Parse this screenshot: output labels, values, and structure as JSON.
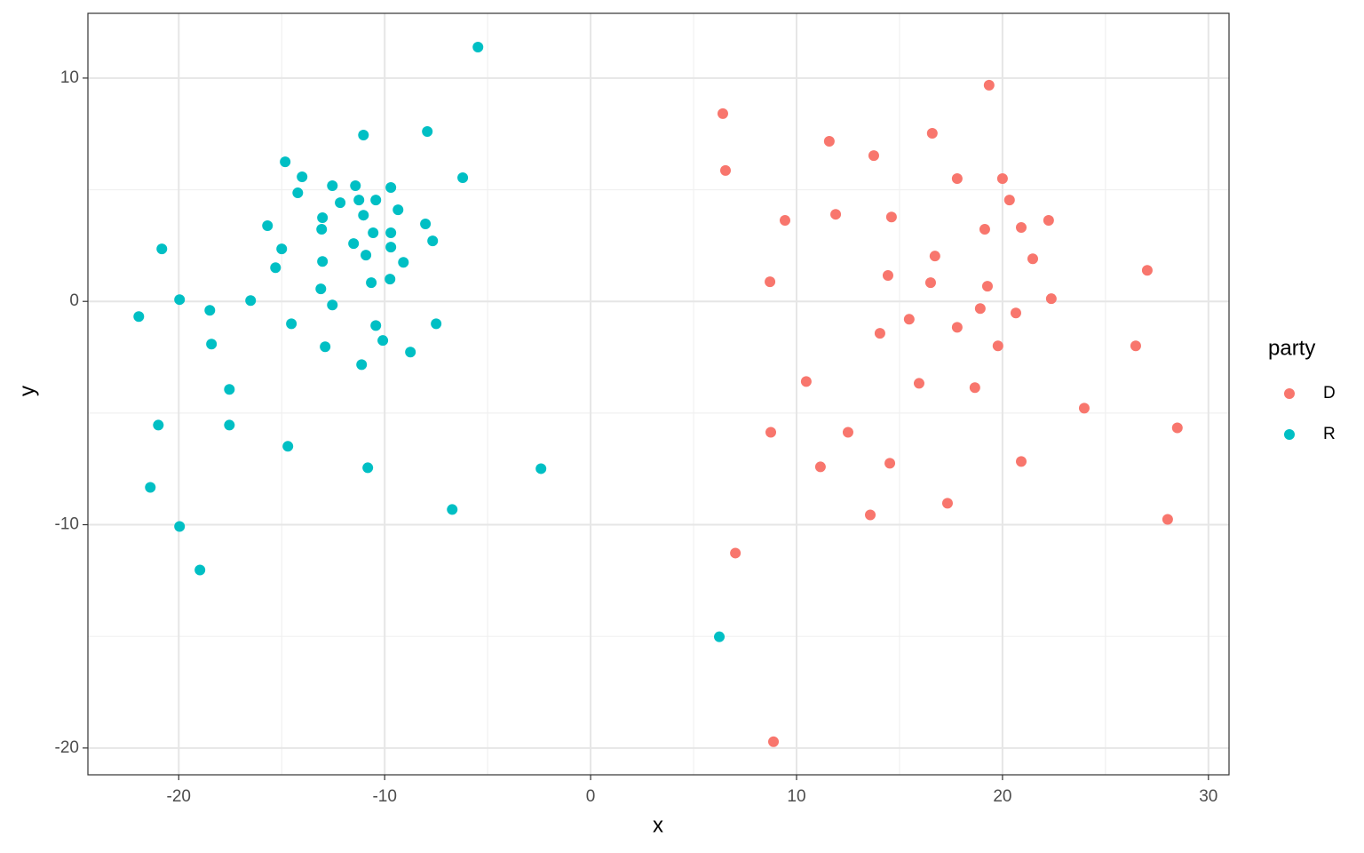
{
  "chart_data": {
    "type": "scatter",
    "x_label": "x",
    "y_label": "y",
    "legend_title": "party",
    "legend_position": "right",
    "xlim": [
      -24.41,
      31.0
    ],
    "ylim": [
      -21.2,
      12.9
    ],
    "xticks": [
      -20,
      -10,
      0,
      10,
      20,
      30
    ],
    "yticks": [
      -20,
      -10,
      0,
      10
    ],
    "xminor": [
      -15,
      -5,
      5,
      15,
      25
    ],
    "yminor": [
      -15,
      -5,
      5
    ],
    "grid": true,
    "series": [
      {
        "name": "D",
        "color": "#F8766D",
        "x": [
          19.35,
          6.42,
          16.59,
          11.59,
          13.75,
          6.55,
          17.8,
          20.0,
          20.34,
          11.9,
          14.61,
          9.44,
          22.24,
          20.91,
          19.14,
          16.72,
          21.47,
          27.03,
          14.44,
          8.71,
          16.51,
          19.27,
          22.37,
          18.92,
          20.65,
          15.47,
          14.05,
          17.8,
          19.78,
          26.47,
          10.47,
          15.95,
          18.66,
          23.97,
          28.49,
          8.75,
          12.5,
          14.53,
          11.16,
          20.91,
          17.33,
          13.58,
          28.02,
          7.03,
          8.88
        ],
        "y": [
          9.68,
          8.41,
          7.53,
          7.17,
          6.53,
          5.86,
          5.5,
          5.5,
          4.54,
          3.9,
          3.78,
          3.63,
          3.63,
          3.31,
          3.23,
          2.03,
          1.91,
          1.39,
          1.16,
          0.88,
          0.84,
          0.68,
          0.12,
          -0.32,
          -0.52,
          -0.8,
          -1.43,
          -1.16,
          -1.99,
          -1.99,
          -3.59,
          -3.67,
          -3.86,
          -4.78,
          -5.66,
          -5.86,
          -5.86,
          -7.25,
          -7.41,
          -7.17,
          -9.04,
          -9.56,
          -9.76,
          -11.27,
          -19.72
        ]
      },
      {
        "name": "R",
        "color": "#00BFC4",
        "x": [
          -5.47,
          -11.03,
          -7.93,
          -14.83,
          -14.01,
          -14.22,
          -12.54,
          -11.42,
          -12.16,
          -11.25,
          -10.43,
          -9.7,
          -6.21,
          -9.35,
          -13.02,
          -11.03,
          -15.69,
          -13.06,
          -10.56,
          -9.7,
          -8.02,
          -11.51,
          -7.67,
          -15.0,
          -9.7,
          -10.91,
          -20.82,
          -13.02,
          -15.3,
          -9.09,
          -9.74,
          -10.65,
          -13.1,
          -16.51,
          -19.96,
          -12.54,
          -18.49,
          -21.94,
          -14.53,
          -10.43,
          -7.5,
          -10.09,
          -18.41,
          -12.89,
          -8.75,
          -11.12,
          -17.54,
          -20.99,
          -17.54,
          -14.7,
          -10.82,
          -2.41,
          -21.38,
          -6.72,
          -19.96,
          -18.97,
          6.25
        ],
        "y": [
          11.39,
          7.45,
          7.61,
          6.25,
          5.58,
          4.86,
          5.18,
          5.18,
          4.42,
          4.54,
          4.54,
          5.1,
          5.54,
          4.1,
          3.75,
          3.86,
          3.39,
          3.23,
          3.07,
          3.07,
          3.47,
          2.59,
          2.71,
          2.35,
          2.43,
          2.07,
          2.35,
          1.79,
          1.51,
          1.75,
          1.0,
          0.84,
          0.56,
          0.04,
          0.08,
          -0.16,
          -0.4,
          -0.68,
          -1.0,
          -1.08,
          -1.0,
          -1.75,
          -1.91,
          -2.03,
          -2.27,
          -2.83,
          -3.94,
          -5.54,
          -5.54,
          -6.49,
          -7.45,
          -7.49,
          -8.33,
          -9.32,
          -10.08,
          -12.03,
          -15.02
        ]
      }
    ]
  }
}
